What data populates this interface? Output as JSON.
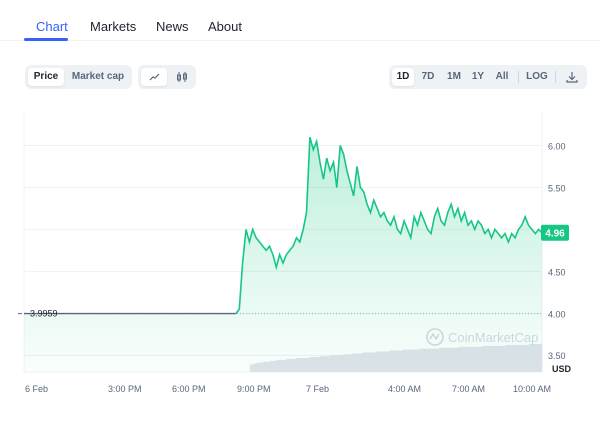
{
  "tabs": [
    "Chart",
    "Markets",
    "News",
    "About"
  ],
  "metric_toggle": [
    "Price",
    "Market cap"
  ],
  "chart_type_icons": [
    "line-chart-icon",
    "candlestick-icon"
  ],
  "range_buttons": [
    "1D",
    "7D",
    "1M",
    "1Y",
    "All",
    "LOG"
  ],
  "download_icon": "download-icon",
  "watermark": "CoinMarketCap",
  "colors": {
    "accent": "#3861fb",
    "line": "#16c784",
    "badge": "#16c784"
  },
  "chart_data": {
    "type": "line",
    "x_ticks": [
      "6 Feb",
      "3:00 PM",
      "6:00 PM",
      "9:00 PM",
      "7 Feb",
      "4:00 AM",
      "7:00 AM",
      "10:00 AM"
    ],
    "y_ticks": [
      "6.00",
      "5.50",
      "5.00",
      "4.50",
      "4.00",
      "3.50"
    ],
    "ylim": [
      3.3,
      6.4
    ],
    "unit": "USD",
    "open_label": "3.9959",
    "current_label": "4.96",
    "grid": true,
    "series": [
      {
        "values": [
          3.9959,
          3.9959,
          3.9959,
          3.9959,
          3.9959,
          3.9959,
          3.9959,
          3.9959,
          3.9959,
          3.9959,
          3.9959,
          3.9959,
          3.9959,
          3.9959,
          3.9959,
          3.9959,
          3.9959,
          3.9959,
          3.9959,
          3.9959,
          3.9959,
          3.9959,
          3.9959,
          3.9959,
          3.9959,
          3.9959,
          3.9959,
          3.9959,
          3.9959,
          3.9959,
          3.9959,
          3.9959,
          3.9959,
          3.9959,
          3.9959,
          3.9959,
          3.9959,
          3.9959,
          3.9959,
          3.9959,
          3.9959,
          3.9959,
          3.9959,
          3.9959,
          3.9959,
          3.9959,
          3.9959,
          3.9959,
          3.9959,
          3.9959,
          3.9959,
          3.9959,
          3.9959,
          3.9959,
          3.9959,
          3.9959,
          3.9959,
          3.9959,
          3.9959,
          3.9959,
          3.9959,
          3.9959,
          3.9959,
          3.9959,
          4.05,
          4.6,
          5.0,
          4.85,
          5.0,
          4.9,
          4.85,
          4.8,
          4.75,
          4.8,
          4.7,
          4.55,
          4.7,
          4.6,
          4.7,
          4.75,
          4.8,
          4.9,
          4.85,
          5.0,
          5.2,
          6.1,
          5.95,
          6.05,
          5.8,
          5.6,
          5.85,
          5.7,
          5.8,
          5.5,
          6.0,
          5.9,
          5.7,
          5.55,
          5.4,
          5.75,
          5.5,
          5.45,
          5.3,
          5.2,
          5.35,
          5.25,
          5.15,
          5.2,
          5.1,
          5.05,
          5.15,
          5.0,
          4.95,
          5.1,
          5.0,
          4.9,
          5.15,
          5.05,
          5.2,
          5.1,
          5.0,
          4.95,
          5.15,
          5.25,
          5.1,
          5.05,
          5.2,
          5.3,
          5.15,
          5.25,
          5.1,
          5.2,
          5.05,
          5.1,
          5.0,
          5.1,
          5.05,
          4.95,
          5.0,
          4.9,
          5.0,
          4.95,
          4.9,
          4.95,
          4.85,
          4.95,
          4.9,
          5.0,
          5.05,
          5.15,
          5.05,
          5.0,
          4.95,
          5.0,
          4.96
        ]
      }
    ],
    "volume": [
      0,
      0,
      0,
      0,
      0,
      0,
      0,
      0,
      0,
      0,
      0,
      0,
      0,
      0,
      0,
      0,
      0,
      0,
      0,
      0,
      0,
      0,
      0,
      0,
      0,
      0,
      0,
      0,
      0,
      0,
      0,
      0,
      0,
      0,
      0,
      0,
      0,
      0,
      0,
      0,
      0,
      0,
      0,
      0,
      0,
      0,
      0,
      0,
      0,
      0,
      0,
      0,
      0,
      0,
      0,
      0,
      0,
      0,
      0,
      0,
      0,
      0,
      0,
      0,
      0,
      0,
      0,
      0,
      8,
      9,
      10,
      10,
      11,
      11,
      12,
      12,
      13,
      13,
      13,
      14,
      14,
      14,
      15,
      15,
      15,
      15,
      16,
      16,
      16,
      17,
      17,
      17,
      18,
      18,
      18,
      18,
      19,
      19,
      19,
      20,
      20,
      20,
      21,
      21,
      21,
      21,
      22,
      22,
      22,
      22,
      23,
      23,
      23,
      23,
      24,
      24,
      24,
      24,
      24,
      25,
      25,
      25,
      25,
      25,
      25,
      26,
      26,
      26,
      26,
      26,
      26,
      27,
      27,
      27,
      27,
      27,
      27,
      27,
      28,
      28,
      28,
      28,
      28,
      28,
      28,
      29,
      29,
      29,
      29,
      29,
      29,
      29,
      30,
      30,
      30,
      30
    ]
  }
}
